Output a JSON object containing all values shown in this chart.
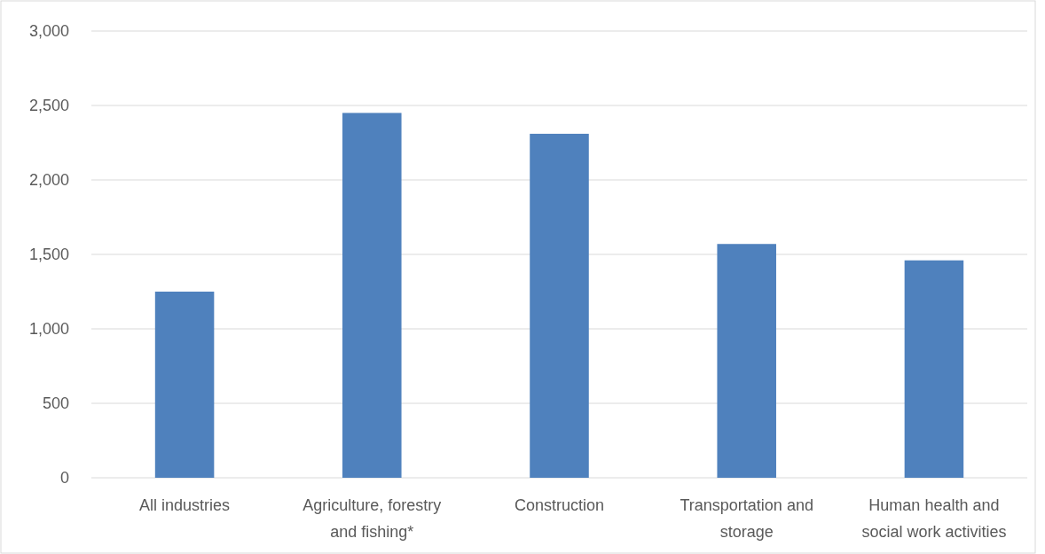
{
  "chart_data": {
    "type": "bar",
    "categories": [
      "All industries",
      "Agriculture, forestry and fishing*",
      "Construction",
      "Transportation and storage",
      "Human health and social work activities"
    ],
    "values": [
      1250,
      2450,
      2310,
      1570,
      1460
    ],
    "color": "#4f81bd",
    "ylim": [
      0,
      3000
    ],
    "yticks": [
      {
        "value": 0,
        "label": "0"
      },
      {
        "value": 500,
        "label": "500"
      },
      {
        "value": 1000,
        "label": "1,000"
      },
      {
        "value": 1500,
        "label": "1,500"
      },
      {
        "value": 2000,
        "label": "2,000"
      },
      {
        "value": 2500,
        "label": "2,500"
      },
      {
        "value": 3000,
        "label": "3,000"
      }
    ],
    "grid": true
  }
}
